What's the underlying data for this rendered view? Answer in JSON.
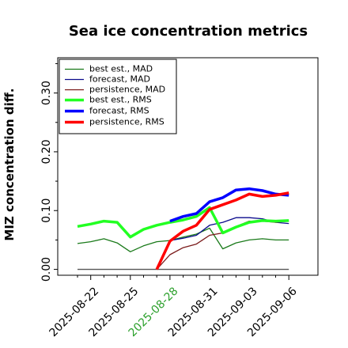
{
  "chart_data": {
    "type": "line",
    "title": "Sea ice concentration metrics",
    "xlabel": "",
    "ylabel": "MIZ concentration diff.",
    "ylim": [
      -0.01,
      0.36
    ],
    "yticks": [
      0.0,
      0.1,
      0.2,
      0.3
    ],
    "ytick_labels": [
      "0.00",
      "0.10",
      "0.20",
      "0.30"
    ],
    "x_dates": [
      "2025-08-21",
      "2025-08-22",
      "2025-08-23",
      "2025-08-24",
      "2025-08-25",
      "2025-08-26",
      "2025-08-27",
      "2025-08-28",
      "2025-08-29",
      "2025-08-30",
      "2025-08-31",
      "2025-09-01",
      "2025-09-02",
      "2025-09-03",
      "2025-09-04",
      "2025-09-05",
      "2025-09-06"
    ],
    "xtick_labels": [
      "2025-08-22",
      "2025-08-25",
      "2025-08-28",
      "2025-08-31",
      "2025-09-03",
      "2025-09-06"
    ],
    "xtick_colors": [
      "#000000",
      "#000000",
      "#2ca02c",
      "#000000",
      "#000000",
      "#000000"
    ],
    "grid": false,
    "legend_position": "top-left",
    "series": [
      {
        "name": "best est., MAD",
        "color": "#1a7a1a",
        "width": 1.3,
        "x": [
          "2025-08-21",
          "2025-08-22",
          "2025-08-23",
          "2025-08-24",
          "2025-08-25",
          "2025-08-26",
          "2025-08-27",
          "2025-08-28",
          "2025-08-29",
          "2025-08-30",
          "2025-08-31",
          "2025-09-01",
          "2025-09-02",
          "2025-09-03",
          "2025-09-04",
          "2025-09-05",
          "2025-09-06"
        ],
        "values": [
          0.044,
          0.047,
          0.052,
          0.045,
          0.03,
          0.04,
          0.047,
          0.049,
          0.055,
          0.06,
          0.07,
          0.035,
          0.045,
          0.05,
          0.052,
          0.05,
          0.05
        ]
      },
      {
        "name": "forecast,  MAD",
        "color": "#0a0a8c",
        "width": 1.3,
        "x": [
          "2025-08-28",
          "2025-08-29",
          "2025-08-30",
          "2025-08-31",
          "2025-09-01",
          "2025-09-02",
          "2025-09-03",
          "2025-09-04",
          "2025-09-05",
          "2025-09-06"
        ],
        "values": [
          0.049,
          0.053,
          0.058,
          0.075,
          0.08,
          0.088,
          0.088,
          0.086,
          0.08,
          0.078
        ]
      },
      {
        "name": "persistence, MAD",
        "color": "#7a1a1a",
        "width": 1.3,
        "x": [
          "2025-08-27",
          "2025-08-28",
          "2025-08-29",
          "2025-08-30",
          "2025-08-31",
          "2025-09-01",
          "2025-09-02",
          "2025-09-03",
          "2025-09-04",
          "2025-09-05",
          "2025-09-06"
        ],
        "values": [
          0.0,
          0.025,
          0.037,
          0.043,
          0.058,
          0.062,
          0.073,
          0.082,
          0.082,
          0.08,
          0.082
        ]
      },
      {
        "name": "best est., RMS",
        "color": "#22ff22",
        "width": 3.5,
        "x": [
          "2025-08-21",
          "2025-08-22",
          "2025-08-23",
          "2025-08-24",
          "2025-08-25",
          "2025-08-26",
          "2025-08-27",
          "2025-08-28",
          "2025-08-29",
          "2025-08-30",
          "2025-08-31",
          "2025-09-01",
          "2025-09-02",
          "2025-09-03",
          "2025-09-04",
          "2025-09-05",
          "2025-09-06"
        ],
        "values": [
          0.073,
          0.077,
          0.082,
          0.08,
          0.055,
          0.068,
          0.075,
          0.08,
          0.084,
          0.09,
          0.105,
          0.062,
          0.072,
          0.08,
          0.083,
          0.082,
          0.083
        ]
      },
      {
        "name": "forecast,  RMS",
        "color": "#0000ff",
        "width": 3.5,
        "x": [
          "2025-08-28",
          "2025-08-29",
          "2025-08-30",
          "2025-08-31",
          "2025-09-01",
          "2025-09-02",
          "2025-09-03",
          "2025-09-04",
          "2025-09-05",
          "2025-09-06"
        ],
        "values": [
          0.082,
          0.09,
          0.095,
          0.115,
          0.122,
          0.135,
          0.137,
          0.134,
          0.128,
          0.126
        ]
      },
      {
        "name": "persistence, RMS",
        "color": "#ff0000",
        "width": 3.5,
        "x": [
          "2025-08-27",
          "2025-08-28",
          "2025-08-29",
          "2025-08-30",
          "2025-08-31",
          "2025-09-01",
          "2025-09-02",
          "2025-09-03",
          "2025-09-04",
          "2025-09-05",
          "2025-09-06"
        ],
        "values": [
          0.0,
          0.048,
          0.065,
          0.075,
          0.102,
          0.11,
          0.118,
          0.128,
          0.124,
          0.126,
          0.13
        ]
      }
    ],
    "reference_line": {
      "color": "#555555",
      "y": 0.0,
      "x": [
        "2025-08-21",
        "2025-09-06"
      ]
    }
  }
}
